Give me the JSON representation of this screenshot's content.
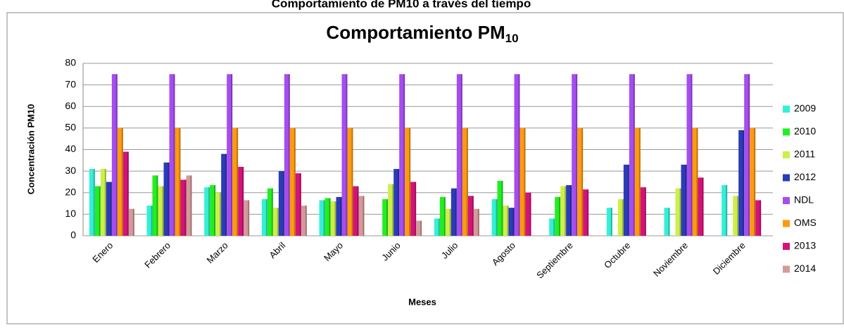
{
  "page_title": "Comportamiento de PM10 a través del tiempo",
  "chart_data": {
    "type": "bar",
    "title": "Comportamiento PM",
    "title_subscript": "10",
    "x_label": "Meses",
    "y_label": "Concentración PM10",
    "categories": [
      "Enero",
      "Febrero",
      "Marzo",
      "Abril",
      "Mayo",
      "Junio",
      "Julio",
      "Agosto",
      "Septiembre",
      "Octubre",
      "Noviembre",
      "Diciembre"
    ],
    "series": [
      {
        "name": "2009",
        "color": "#33f0d8",
        "values": [
          31,
          14,
          22.5,
          17,
          16.5,
          null,
          8,
          17,
          8,
          13,
          13,
          23.5
        ]
      },
      {
        "name": "2010",
        "color": "#22ee22",
        "values": [
          23,
          28,
          23.5,
          22,
          17.5,
          17,
          18,
          25.5,
          18,
          null,
          null,
          null
        ]
      },
      {
        "name": "2011",
        "color": "#ccf04a",
        "values": [
          31,
          23,
          20,
          13,
          16,
          24,
          12.5,
          14,
          23,
          17,
          22,
          18.5
        ]
      },
      {
        "name": "2012",
        "color": "#2a3cb8",
        "values": [
          25,
          34,
          38,
          30,
          18,
          31,
          22,
          13,
          23.5,
          33,
          33,
          49
        ]
      },
      {
        "name": "NDL",
        "color": "#a64df0",
        "values": [
          75,
          75,
          75,
          75,
          75,
          75,
          75,
          75,
          75,
          75,
          75,
          75
        ]
      },
      {
        "name": "OMS",
        "color": "#ff9a10",
        "values": [
          50,
          50,
          50,
          50,
          50,
          50,
          50,
          50,
          50,
          50,
          50,
          50
        ]
      },
      {
        "name": "2013",
        "color": "#d5127a",
        "values": [
          39,
          26,
          32,
          29,
          23,
          25,
          18.5,
          20,
          21.5,
          22.5,
          27,
          16.5
        ]
      },
      {
        "name": "2014",
        "color": "#d49a9a",
        "values": [
          12.5,
          28,
          16.5,
          14,
          18.5,
          7,
          12.5,
          null,
          null,
          null,
          null,
          null
        ]
      }
    ],
    "ylim": [
      0,
      80
    ],
    "yticks": [
      0,
      10,
      20,
      30,
      40,
      50,
      60,
      70,
      80
    ],
    "grid": true,
    "legend": "right"
  }
}
